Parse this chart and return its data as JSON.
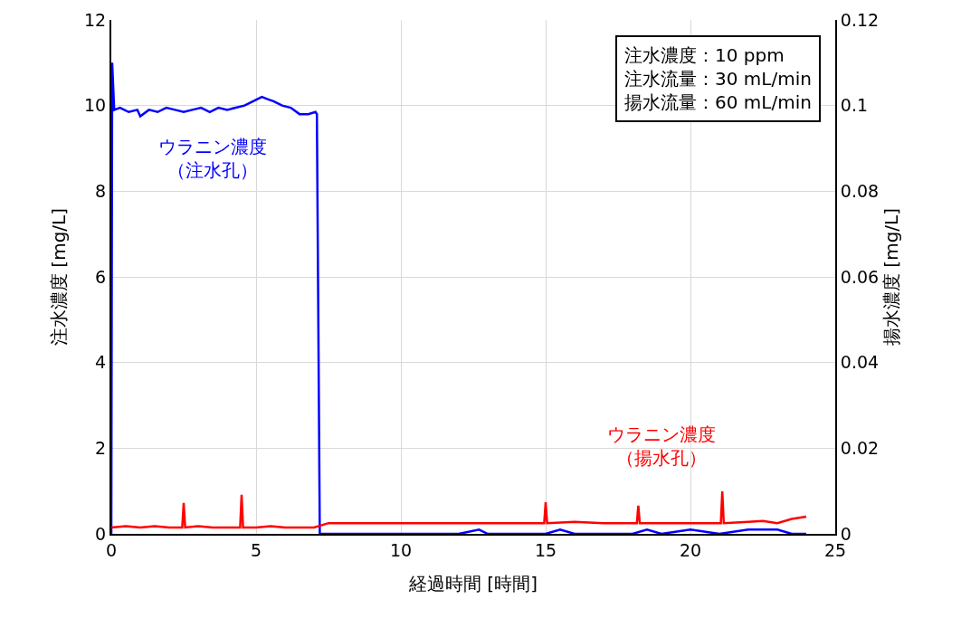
{
  "chart_data": {
    "type": "line",
    "xlabel": "経過時間 [時間]",
    "ylabel": "注水濃度 [mg/L]",
    "y2label": "揚水濃度 [mg/L]",
    "xlim": [
      0,
      25
    ],
    "xticks": [
      0,
      5,
      10,
      15,
      20,
      25
    ],
    "ylim": [
      0,
      12
    ],
    "yticks": [
      0,
      2,
      4,
      6,
      8,
      10,
      12
    ],
    "y2lim": [
      0,
      0.12
    ],
    "y2ticks": [
      0,
      0.02,
      0.04,
      0.06,
      0.08,
      0.1,
      0.12
    ],
    "grid": true,
    "legend": false,
    "marker": "none",
    "line_style": "solid",
    "series": [
      {
        "name": "ウラニン濃度（注水孔）",
        "color": "#0000ff",
        "x": [
          0,
          0.03,
          0.1,
          0.3,
          0.6,
          0.9,
          1.0,
          1.3,
          1.6,
          1.9,
          2.2,
          2.5,
          2.8,
          3.1,
          3.4,
          3.7,
          4.0,
          4.3,
          4.6,
          4.9,
          5.2,
          5.4,
          5.6,
          5.9,
          6.2,
          6.5,
          6.8,
          7.05,
          7.1,
          7.2,
          8,
          9,
          10,
          11,
          12,
          12.7,
          13,
          14,
          15,
          15.5,
          16,
          17,
          18,
          18.5,
          19,
          20,
          21,
          22,
          23,
          23.5,
          24
        ],
        "values": [
          0,
          11,
          9.9,
          9.95,
          9.85,
          9.9,
          9.75,
          9.9,
          9.85,
          9.95,
          9.9,
          9.85,
          9.9,
          9.95,
          9.85,
          9.95,
          9.9,
          9.95,
          10.0,
          10.1,
          10.2,
          10.15,
          10.1,
          10.0,
          9.95,
          9.8,
          9.8,
          9.85,
          9.8,
          0,
          0,
          0,
          0,
          0,
          0,
          0.1,
          0,
          0,
          0,
          0.1,
          0,
          0,
          0,
          0.1,
          0,
          0.1,
          0,
          0.1,
          0.1,
          0,
          0
        ]
      },
      {
        "name": "ウラニン濃度（揚水孔）",
        "color": "#ff0000",
        "axis": "y2",
        "x": [
          0,
          0.5,
          1,
          1.5,
          2,
          2.45,
          2.5,
          2.55,
          3,
          3.5,
          4,
          4.45,
          4.5,
          4.55,
          5,
          5.5,
          6,
          6.5,
          7,
          7.5,
          8,
          9,
          10,
          11,
          12,
          13,
          14,
          14.95,
          15,
          15.05,
          16,
          17,
          18.15,
          18.2,
          18.25,
          19,
          20,
          21.05,
          21.1,
          21.15,
          22,
          22.5,
          23,
          23.5,
          24
        ],
        "values": [
          0.0015,
          0.0018,
          0.0015,
          0.0018,
          0.0015,
          0.0015,
          0.0072,
          0.0015,
          0.0018,
          0.0015,
          0.0015,
          0.0015,
          0.0091,
          0.0015,
          0.0015,
          0.0018,
          0.0015,
          0.0015,
          0.0015,
          0.0025,
          0.0025,
          0.0025,
          0.0025,
          0.0025,
          0.0025,
          0.0025,
          0.0025,
          0.0025,
          0.0074,
          0.0025,
          0.0028,
          0.0025,
          0.0025,
          0.0066,
          0.0025,
          0.0025,
          0.0025,
          0.0025,
          0.0099,
          0.0025,
          0.0028,
          0.003,
          0.0025,
          0.0035,
          0.004
        ]
      }
    ],
    "annotations": [
      "注水濃度：10 ppm",
      "注水流量：30 mL/min",
      "揚水流量：60 mL/min"
    ]
  }
}
